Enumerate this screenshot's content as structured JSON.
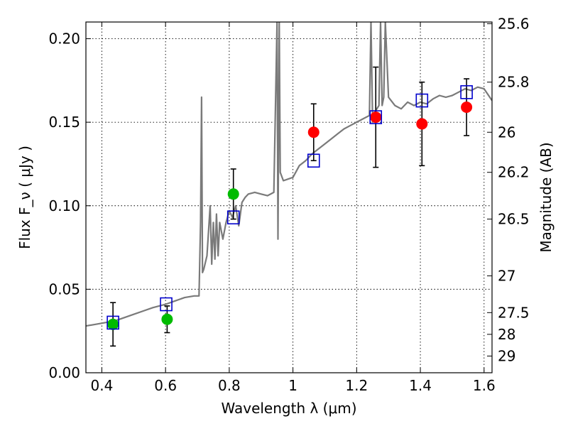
{
  "chart_data": {
    "type": "scatter",
    "title": "",
    "xlabel": "Wavelength  λ (μm)",
    "ylabel_left": "Flux  F_ν  ( μJy )",
    "ylabel_right": "Magnitude (AB)",
    "xlim": [
      0.35,
      1.625
    ],
    "ylim": [
      0.0,
      0.21
    ],
    "x_ticks": [
      0.4,
      0.6,
      0.8,
      1.0,
      1.2,
      1.4,
      1.6
    ],
    "x_tick_labels": [
      "0.4",
      "0.6",
      "0.8",
      "1",
      "1.2",
      "1.4",
      "1.6"
    ],
    "y_ticks": [
      0.0,
      0.05,
      0.1,
      0.15,
      0.2
    ],
    "y_tick_labels": [
      "0.00",
      "0.05",
      "0.10",
      "0.15",
      "0.20"
    ],
    "right_ticks": [
      {
        "flux": 0.209,
        "label": "25.6"
      },
      {
        "flux": 0.174,
        "label": "25.8"
      },
      {
        "flux": 0.144,
        "label": "26"
      },
      {
        "flux": 0.12,
        "label": "26.2"
      },
      {
        "flux": 0.092,
        "label": "26.5"
      },
      {
        "flux": 0.058,
        "label": "27"
      },
      {
        "flux": 0.036,
        "label": "27.5"
      },
      {
        "flux": 0.023,
        "label": "28"
      },
      {
        "flux": 0.01,
        "label": "29"
      }
    ],
    "grid": true,
    "colors": {
      "model": "#7a7a7a",
      "green": "#00bb00",
      "red": "#ff0000",
      "blue": "#0000cc",
      "errorbar": "#000000"
    },
    "series": [
      {
        "name": "model spectrum",
        "style": "line",
        "x": [
          0.35,
          0.38,
          0.41,
          0.44,
          0.47,
          0.5,
          0.53,
          0.56,
          0.6,
          0.63,
          0.66,
          0.69,
          0.705,
          0.71,
          0.713,
          0.716,
          0.72,
          0.73,
          0.74,
          0.745,
          0.75,
          0.755,
          0.76,
          0.765,
          0.77,
          0.78,
          0.79,
          0.8,
          0.81,
          0.82,
          0.83,
          0.84,
          0.85,
          0.86,
          0.88,
          0.9,
          0.92,
          0.94,
          0.95,
          0.953,
          0.957,
          0.96,
          0.97,
          1.0,
          1.02,
          1.04,
          1.06,
          1.08,
          1.1,
          1.12,
          1.14,
          1.16,
          1.18,
          1.2,
          1.22,
          1.24,
          1.245,
          1.25,
          1.255,
          1.26,
          1.27,
          1.275,
          1.28,
          1.285,
          1.29,
          1.3,
          1.32,
          1.34,
          1.36,
          1.38,
          1.4,
          1.42,
          1.44,
          1.46,
          1.48,
          1.5,
          1.52,
          1.54,
          1.56,
          1.58,
          1.6,
          1.625
        ],
        "y": [
          0.028,
          0.029,
          0.03,
          0.031,
          0.033,
          0.035,
          0.037,
          0.039,
          0.041,
          0.043,
          0.045,
          0.046,
          0.046,
          0.09,
          0.165,
          0.06,
          0.062,
          0.07,
          0.1,
          0.065,
          0.09,
          0.068,
          0.095,
          0.07,
          0.09,
          0.08,
          0.09,
          0.097,
          0.093,
          0.1,
          0.088,
          0.102,
          0.105,
          0.107,
          0.108,
          0.107,
          0.106,
          0.108,
          0.21,
          0.08,
          0.21,
          0.12,
          0.115,
          0.117,
          0.124,
          0.127,
          0.131,
          0.134,
          0.137,
          0.14,
          0.143,
          0.146,
          0.148,
          0.15,
          0.152,
          0.154,
          0.21,
          0.15,
          0.155,
          0.157,
          0.16,
          0.21,
          0.16,
          0.165,
          0.21,
          0.165,
          0.16,
          0.158,
          0.162,
          0.16,
          0.162,
          0.161,
          0.164,
          0.166,
          0.165,
          0.166,
          0.168,
          0.17,
          0.169,
          0.171,
          0.17,
          0.163
        ]
      },
      {
        "name": "green measurements",
        "style": "circle",
        "points": [
          {
            "x": 0.435,
            "y": 0.029,
            "err": 0.013
          },
          {
            "x": 0.605,
            "y": 0.032,
            "err": 0.008
          },
          {
            "x": 0.813,
            "y": 0.107,
            "err": 0.015
          }
        ]
      },
      {
        "name": "red measurements",
        "style": "circle",
        "points": [
          {
            "x": 1.065,
            "y": 0.144,
            "err": 0.017
          },
          {
            "x": 1.26,
            "y": 0.153,
            "err": 0.03
          },
          {
            "x": 1.405,
            "y": 0.149,
            "err": 0.025
          },
          {
            "x": 1.545,
            "y": 0.159,
            "err": 0.017
          }
        ]
      },
      {
        "name": "model bandpass flux",
        "style": "open-square",
        "points": [
          {
            "x": 0.435,
            "y": 0.03
          },
          {
            "x": 0.602,
            "y": 0.041
          },
          {
            "x": 0.813,
            "y": 0.093
          },
          {
            "x": 1.065,
            "y": 0.127
          },
          {
            "x": 1.26,
            "y": 0.153
          },
          {
            "x": 1.405,
            "y": 0.163
          },
          {
            "x": 1.545,
            "y": 0.168
          }
        ]
      }
    ]
  }
}
